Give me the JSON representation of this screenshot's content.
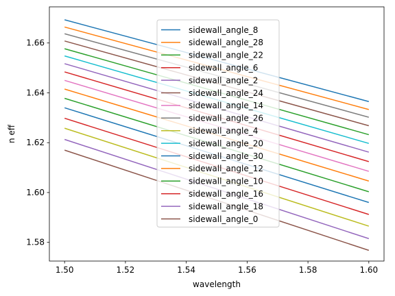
{
  "chart_data": {
    "type": "line",
    "title": "",
    "xlabel": "wavelength",
    "ylabel": "n eff",
    "xlim": [
      1.495,
      1.605
    ],
    "ylim": [
      1.5725,
      1.6745
    ],
    "xticks": [
      1.5,
      1.52,
      1.54,
      1.56,
      1.58,
      1.6
    ],
    "xtick_labels": [
      "1.50",
      "1.52",
      "1.54",
      "1.56",
      "1.58",
      "1.60"
    ],
    "yticks": [
      1.58,
      1.6,
      1.62,
      1.64,
      1.66
    ],
    "ytick_labels": [
      "1.58",
      "1.60",
      "1.62",
      "1.64",
      "1.66"
    ],
    "grid": false,
    "legend_position": "upper center",
    "x": [
      1.5,
      1.6
    ],
    "series": [
      {
        "name": "sidewall_angle_8",
        "color": "#1f77b4",
        "values": [
          1.6693,
          1.6365
        ]
      },
      {
        "name": "sidewall_angle_28",
        "color": "#ff7f0e",
        "values": [
          1.6664,
          1.6333
        ]
      },
      {
        "name": "sidewall_angle_22",
        "color": "#2ca02c",
        "values": [
          1.6577,
          1.6232
        ]
      },
      {
        "name": "sidewall_angle_6",
        "color": "#d62728",
        "values": [
          1.6484,
          1.6124
        ]
      },
      {
        "name": "sidewall_angle_2",
        "color": "#9467bd",
        "values": [
          1.6517,
          1.6162
        ]
      },
      {
        "name": "sidewall_angle_24",
        "color": "#8c564b",
        "values": [
          1.6608,
          1.6268
        ]
      },
      {
        "name": "sidewall_angle_14",
        "color": "#e377c2",
        "values": [
          1.645,
          1.6085
        ]
      },
      {
        "name": "sidewall_angle_26",
        "color": "#7f7f7f",
        "values": [
          1.6637,
          1.6302
        ]
      },
      {
        "name": "sidewall_angle_4",
        "color": "#bcbd22",
        "values": [
          1.6258,
          1.5865
        ]
      },
      {
        "name": "sidewall_angle_20",
        "color": "#17becf",
        "values": [
          1.6548,
          1.6197
        ]
      },
      {
        "name": "sidewall_angle_30",
        "color": "#1f77b4",
        "values": [
          1.634,
          1.596
        ]
      },
      {
        "name": "sidewall_angle_12",
        "color": "#ff7f0e",
        "values": [
          1.6415,
          1.6046
        ]
      },
      {
        "name": "sidewall_angle_10",
        "color": "#2ca02c",
        "values": [
          1.6378,
          1.6003
        ]
      },
      {
        "name": "sidewall_angle_16",
        "color": "#d62728",
        "values": [
          1.6298,
          1.5912
        ]
      },
      {
        "name": "sidewall_angle_18",
        "color": "#9467bd",
        "values": [
          1.6213,
          1.5815
        ]
      },
      {
        "name": "sidewall_angle_0",
        "color": "#8c564b",
        "values": [
          1.617,
          1.5768
        ]
      }
    ]
  }
}
